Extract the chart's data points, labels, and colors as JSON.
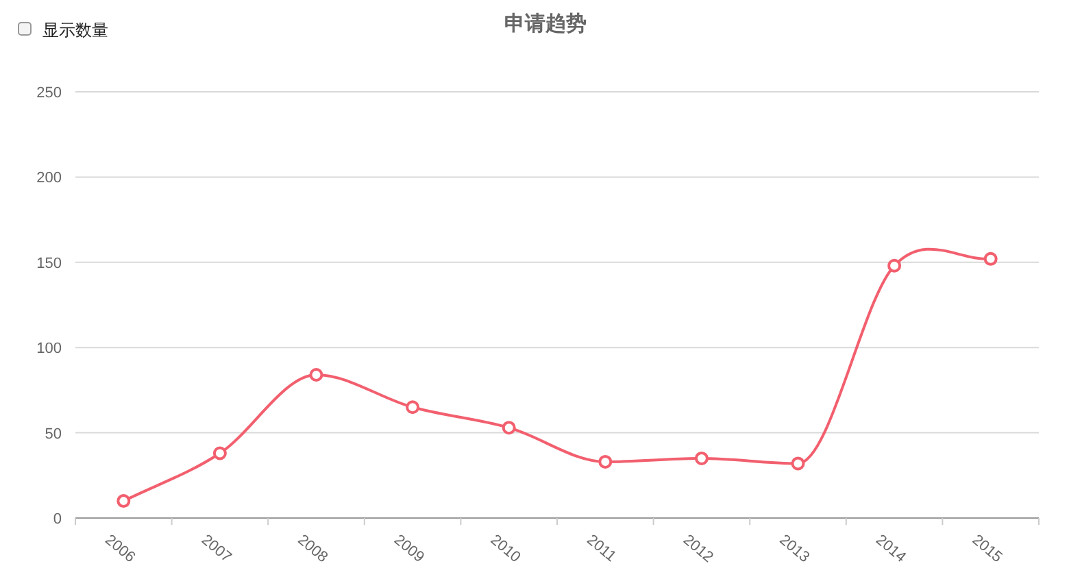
{
  "chart_data": {
    "type": "line",
    "title": "申请趋势",
    "annotations": [
      "显示数量"
    ],
    "categories": [
      "2006",
      "2007",
      "2008",
      "2009",
      "2010",
      "2011",
      "2012",
      "2013",
      "2014",
      "2015"
    ],
    "series": [
      {
        "color": "#f25f6e",
        "values": [
          10,
          38,
          84,
          65,
          53,
          33,
          35,
          32,
          148,
          152
        ]
      }
    ],
    "ylim": [
      0,
      250
    ],
    "yticks": [
      0,
      50,
      100,
      150,
      200,
      250
    ],
    "grid": "y",
    "marker": "circle",
    "line_style": "solid"
  }
}
